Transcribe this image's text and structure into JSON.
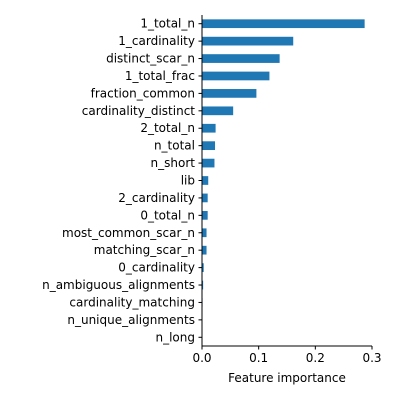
{
  "chart_data": {
    "type": "bar",
    "orientation": "horizontal",
    "categories": [
      "1_total_n",
      "1_cardinality",
      "distinct_scar_n",
      "1_total_frac",
      "fraction_common",
      "cardinality_distinct",
      "2_total_n",
      "n_total",
      "n_short",
      "lib",
      "2_cardinality",
      "0_total_n",
      "most_common_scar_n",
      "matching_scar_n",
      "0_cardinality",
      "n_ambiguous_alignments",
      "cardinality_matching",
      "n_unique_alignments",
      "n_long"
    ],
    "values": [
      0.287,
      0.161,
      0.137,
      0.119,
      0.096,
      0.055,
      0.024,
      0.023,
      0.022,
      0.011,
      0.01,
      0.01,
      0.008,
      0.008,
      0.003,
      0.002,
      0.001,
      0.0005,
      0.0
    ],
    "xlabel": "Feature importance",
    "ylabel": "",
    "xlim": [
      0,
      0.3
    ],
    "xticks": [
      "0.0",
      "0.1",
      "0.2",
      "0.3"
    ],
    "grid": false,
    "bar_color": "#1f77b4"
  }
}
